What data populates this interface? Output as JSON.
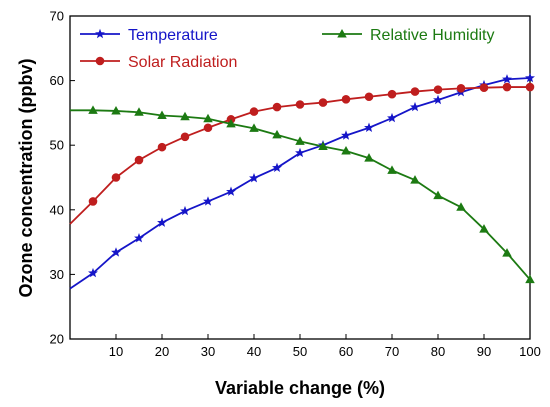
{
  "chart_data": {
    "type": "line",
    "xlabel": "Variable change (%)",
    "ylabel": "Ozone concentration (ppbv)",
    "xlim": [
      0,
      100
    ],
    "ylim": [
      20,
      70
    ],
    "x_ticks": [
      10,
      20,
      30,
      40,
      50,
      60,
      70,
      80,
      90,
      100
    ],
    "y_ticks": [
      20,
      30,
      40,
      50,
      60,
      70
    ],
    "grid": false,
    "legend_placement": "top",
    "series": [
      {
        "name": "Temperature",
        "color": "#1515c8",
        "marker": "star",
        "x": [
          0,
          5,
          10,
          15,
          20,
          25,
          30,
          35,
          40,
          45,
          50,
          55,
          60,
          65,
          70,
          75,
          80,
          85,
          90,
          95,
          100
        ],
        "y": [
          27.8,
          30.2,
          33.4,
          35.6,
          38.0,
          39.8,
          41.3,
          42.8,
          44.9,
          46.5,
          48.8,
          50.0,
          51.5,
          52.7,
          54.2,
          55.9,
          57.0,
          58.2,
          59.3,
          60.2,
          60.4
        ]
      },
      {
        "name": "Solar Radiation",
        "color": "#bf1e1e",
        "marker": "circle",
        "x": [
          0,
          5,
          10,
          15,
          20,
          25,
          30,
          35,
          40,
          45,
          50,
          55,
          60,
          65,
          70,
          75,
          80,
          85,
          90,
          95,
          100
        ],
        "y": [
          37.8,
          41.3,
          45.0,
          47.7,
          49.7,
          51.3,
          52.7,
          54.0,
          55.2,
          55.9,
          56.3,
          56.6,
          57.1,
          57.5,
          57.9,
          58.3,
          58.6,
          58.8,
          58.9,
          59.0,
          59.0
        ]
      },
      {
        "name": "Relative Humidity",
        "color": "#1c7a12",
        "marker": "triangle",
        "x": [
          0,
          5,
          10,
          15,
          20,
          25,
          30,
          35,
          40,
          45,
          50,
          55,
          60,
          65,
          70,
          75,
          80,
          85,
          90,
          95,
          100
        ],
        "y": [
          55.4,
          55.4,
          55.3,
          55.1,
          54.6,
          54.4,
          54.1,
          53.3,
          52.6,
          51.6,
          50.6,
          49.8,
          49.1,
          48.0,
          46.1,
          44.6,
          42.2,
          40.4,
          37.0,
          33.3,
          29.2
        ]
      }
    ]
  }
}
